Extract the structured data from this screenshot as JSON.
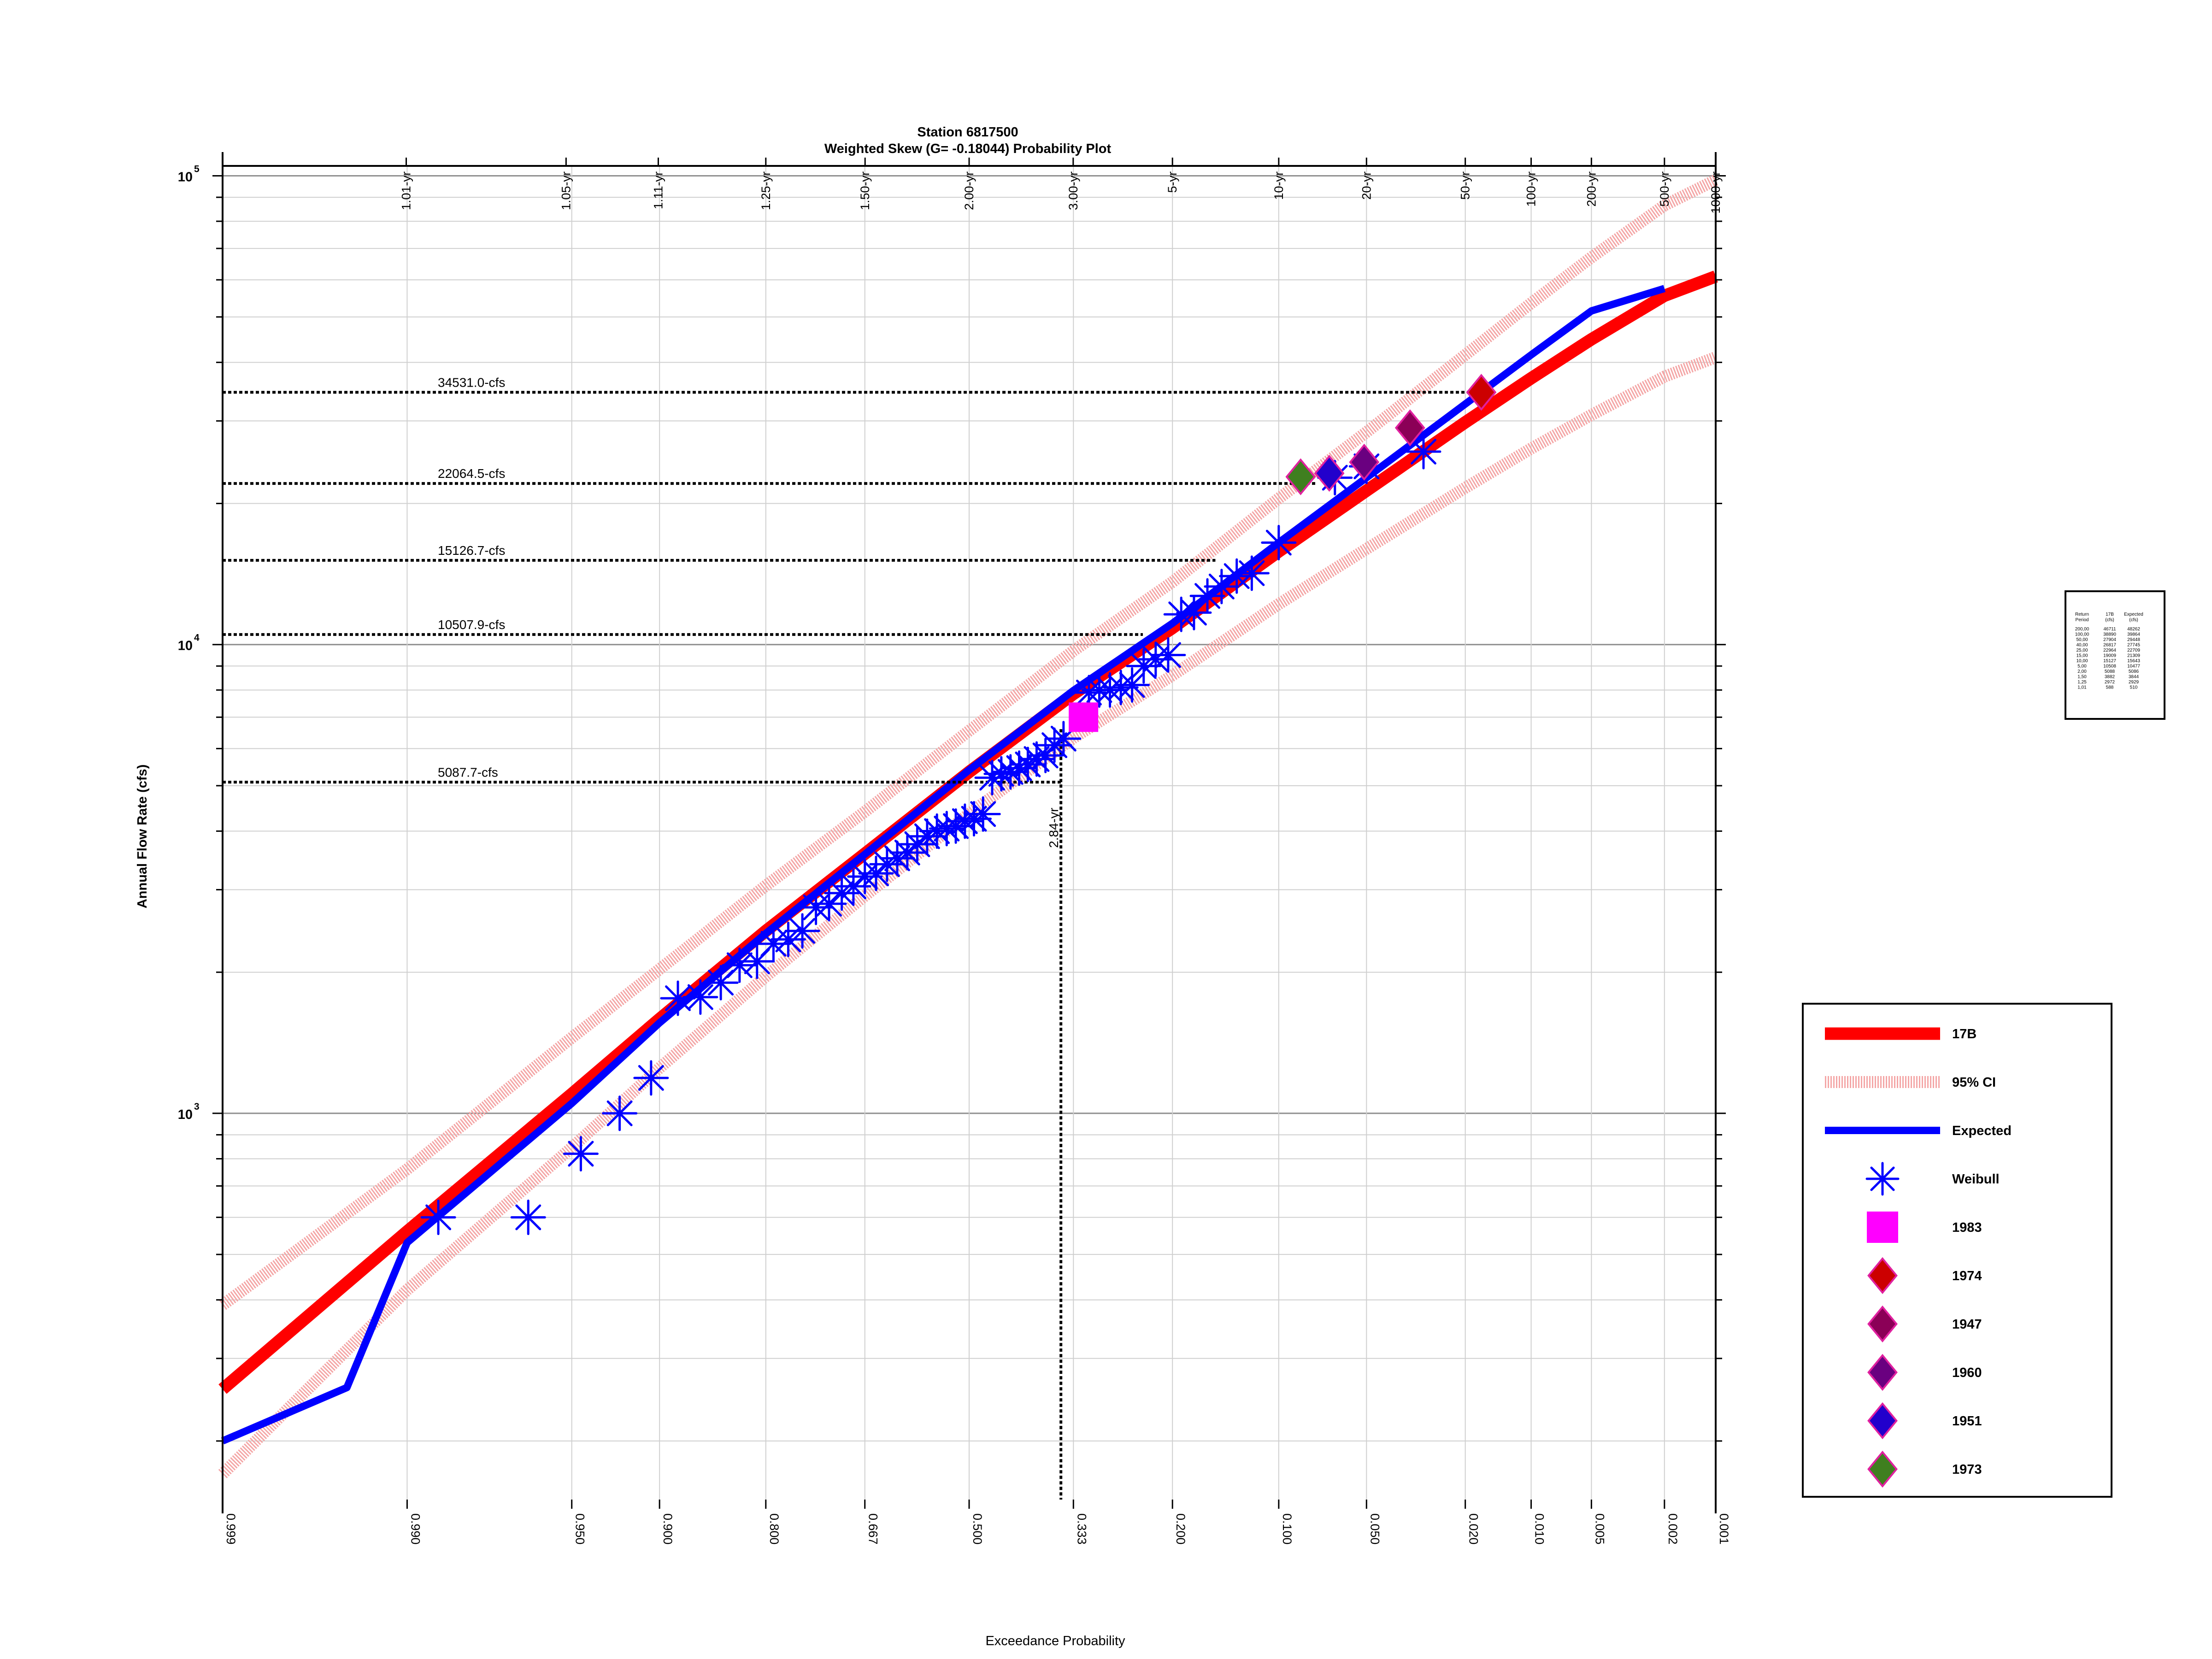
{
  "chart_data": {
    "type": "scatter",
    "title": "Station 6817500",
    "subtitle": "Weighted Skew (G= -0.18044) Probability Plot",
    "xlabel": "Exceedance Probability",
    "ylabel": "Annual Flow Rate (cfs)",
    "x_scale": "normal-probability",
    "x_direction": "reversed",
    "xlim": [
      0.999,
      0.001
    ],
    "y_scale": "log",
    "ylim": [
      150,
      105000
    ],
    "grid": true,
    "legend_position": "right",
    "bottom_ticks": [
      {
        "p": 0.999,
        "label": "0.999"
      },
      {
        "p": 0.99,
        "label": "0.990"
      },
      {
        "p": 0.95,
        "label": "0.950"
      },
      {
        "p": 0.9,
        "label": "0.900"
      },
      {
        "p": 0.8,
        "label": "0.800"
      },
      {
        "p": 0.667,
        "label": "0.667"
      },
      {
        "p": 0.5,
        "label": "0.500"
      },
      {
        "p": 0.333,
        "label": "0.333"
      },
      {
        "p": 0.2,
        "label": "0.200"
      },
      {
        "p": 0.1,
        "label": "0.100"
      },
      {
        "p": 0.05,
        "label": "0.050"
      },
      {
        "p": 0.02,
        "label": "0.020"
      },
      {
        "p": 0.01,
        "label": "0.010"
      },
      {
        "p": 0.005,
        "label": "0.005"
      },
      {
        "p": 0.002,
        "label": "0.002"
      },
      {
        "p": 0.001,
        "label": "0.001"
      }
    ],
    "top_ticks": [
      {
        "p": 0.990099,
        "label": "1.01-yr"
      },
      {
        "p": 0.952381,
        "label": "1.05-yr"
      },
      {
        "p": 0.900901,
        "label": "1.11-yr"
      },
      {
        "p": 0.8,
        "label": "1.25-yr"
      },
      {
        "p": 0.666667,
        "label": "1.50-yr"
      },
      {
        "p": 0.5,
        "label": "2.00-yr"
      },
      {
        "p": 0.333333,
        "label": "3.00-yr"
      },
      {
        "p": 0.2,
        "label": "5-yr"
      },
      {
        "p": 0.1,
        "label": "10-yr"
      },
      {
        "p": 0.05,
        "label": "20-yr"
      },
      {
        "p": 0.02,
        "label": "50-yr"
      },
      {
        "p": 0.01,
        "label": "100-yr"
      },
      {
        "p": 0.005,
        "label": "200-yr"
      },
      {
        "p": 0.002,
        "label": "500-yr"
      },
      {
        "p": 0.001,
        "label": "1000-yr"
      }
    ],
    "y_ticks": [
      {
        "v": 1000,
        "base": "10",
        "exp": "3"
      },
      {
        "v": 10000,
        "base": "10",
        "exp": "4"
      },
      {
        "v": 100000,
        "base": "10",
        "exp": "5"
      }
    ],
    "reference_lines": [
      {
        "flow": 34531.0,
        "p": 0.017,
        "label": "34531.0-cfs"
      },
      {
        "flow": 22064.5,
        "p": 0.075,
        "label": "22064.5-cfs"
      },
      {
        "flow": 15126.7,
        "p": 0.154,
        "label": "15126.7-cfs"
      },
      {
        "flow": 10507.9,
        "p": 0.236,
        "label": "10507.9-cfs"
      },
      {
        "flow": 5087.7,
        "p": 0.352,
        "label": "5087.7-cfs"
      }
    ],
    "vertical_marker": {
      "p": 0.352,
      "flow": 6600,
      "label": "2.84-yr"
    },
    "series": [
      {
        "name": "17B",
        "kind": "line",
        "color": "#ff0000",
        "x": [
          0.999,
          0.99,
          0.95,
          0.9,
          0.8,
          0.667,
          0.5,
          0.333,
          0.2,
          0.1,
          0.05,
          0.02,
          0.01,
          0.005,
          0.002,
          0.001
        ],
        "y": [
          258,
          560,
          1100,
          1590,
          2450,
          3580,
          5350,
          7850,
          10850,
          15800,
          21300,
          29800,
          37000,
          44800,
          55500,
          61000
        ]
      },
      {
        "name": "95% CI",
        "kind": "band",
        "color": "#f4a6a6",
        "x": [
          0.999,
          0.99,
          0.95,
          0.9,
          0.8,
          0.667,
          0.5,
          0.333,
          0.2,
          0.1,
          0.05,
          0.02,
          0.01,
          0.005,
          0.002,
          0.001
        ],
        "upper": [
          390,
          760,
          1450,
          2030,
          3060,
          4400,
          6550,
          9700,
          13600,
          20500,
          28400,
          41500,
          53500,
          67000,
          86500,
          98000
        ],
        "lower": [
          170,
          420,
          845,
          1250,
          1960,
          2910,
          4360,
          6320,
          8600,
          12200,
          16000,
          21600,
          26200,
          30900,
          37300,
          41000
        ]
      },
      {
        "name": "Expected",
        "kind": "line",
        "color": "#0000ff",
        "x": [
          0.999,
          0.995,
          0.99,
          0.95,
          0.9,
          0.8,
          0.667,
          0.5,
          0.333,
          0.2,
          0.1,
          0.05,
          0.02,
          0.01,
          0.005,
          0.002
        ],
        "y": [
          200,
          260,
          530,
          1050,
          1560,
          2420,
          3570,
          5400,
          7980,
          11100,
          16500,
          22700,
          32600,
          41500,
          51500,
          57500
        ]
      },
      {
        "name": "Weibull",
        "kind": "points",
        "marker": "asterisk",
        "color": "#0000ff",
        "x": [
          0.986,
          0.966,
          0.946,
          0.926,
          0.906,
          0.886,
          0.867,
          0.848,
          0.829,
          0.81,
          0.791,
          0.773,
          0.755,
          0.737,
          0.719,
          0.701,
          0.684,
          0.667,
          0.65,
          0.633,
          0.617,
          0.601,
          0.585,
          0.569,
          0.553,
          0.537,
          0.522,
          0.507,
          0.492,
          0.477,
          0.462,
          0.447,
          0.432,
          0.418,
          0.404,
          0.39,
          0.376,
          0.362,
          0.348,
          0.31,
          0.295,
          0.28,
          0.265,
          0.25,
          0.235,
          0.22,
          0.205,
          0.19,
          0.176,
          0.162,
          0.148,
          0.134,
          0.121,
          0.1,
          0.065,
          0.05,
          0.03
        ],
        "y": [
          600,
          600,
          820,
          1000,
          1190,
          1760,
          1770,
          1900,
          2070,
          2110,
          2300,
          2350,
          2450,
          2750,
          2800,
          2950,
          3050,
          3200,
          3250,
          3400,
          3500,
          3600,
          3750,
          3900,
          4000,
          4050,
          4100,
          4200,
          4250,
          4350,
          5200,
          5300,
          5350,
          5450,
          5550,
          5700,
          5800,
          6100,
          6300,
          7900,
          8000,
          8000,
          8100,
          8200,
          9000,
          9300,
          9500,
          11600,
          11700,
          12700,
          13300,
          14000,
          14200,
          16500,
          22700,
          24000,
          25800
        ]
      },
      {
        "name": "1983",
        "kind": "points",
        "marker": "square",
        "color": "#ff00ff",
        "x": [
          0.318
        ],
        "y": [
          7000
        ]
      },
      {
        "name": "1974",
        "kind": "points",
        "marker": "diamond",
        "color": "#cc0000",
        "x": [
          0.017
        ],
        "y": [
          34531
        ]
      },
      {
        "name": "1947",
        "kind": "points",
        "marker": "diamond",
        "color": "#8b0057",
        "x": [
          0.034
        ],
        "y": [
          29000
        ]
      },
      {
        "name": "1960",
        "kind": "points",
        "marker": "diamond",
        "color": "#6a0080",
        "x": [
          0.051
        ],
        "y": [
          24500
        ]
      },
      {
        "name": "1951",
        "kind": "points",
        "marker": "diamond",
        "color": "#2200cc",
        "x": [
          0.068
        ],
        "y": [
          23200
        ]
      },
      {
        "name": "1973",
        "kind": "points",
        "marker": "diamond",
        "color": "#3f7f1f",
        "x": [
          0.085
        ],
        "y": [
          22800
        ]
      }
    ],
    "summary_table": {
      "header": [
        [
          "Return",
          "Period"
        ],
        [
          "17B",
          "(cfs)"
        ],
        [
          "Expected",
          "(cfs)"
        ]
      ],
      "rows": [
        [
          "200,00",
          "46711",
          "48262"
        ],
        [
          "100,00",
          "38890",
          "39864"
        ],
        [
          "50,00",
          "27904",
          "29448"
        ],
        [
          "40,00",
          "26817",
          "27745"
        ],
        [
          "25,00",
          "22964",
          "22709"
        ],
        [
          "15,00",
          "19009",
          "21309"
        ],
        [
          "10,00",
          "15127",
          "15643"
        ],
        [
          "5,00",
          "10508",
          "10477"
        ],
        [
          "2,00",
          "5088",
          "5086"
        ],
        [
          "1,50",
          "3882",
          "3844"
        ],
        [
          "1,25",
          "2972",
          "2929"
        ],
        [
          "1,01",
          "588",
          "510"
        ]
      ]
    }
  }
}
